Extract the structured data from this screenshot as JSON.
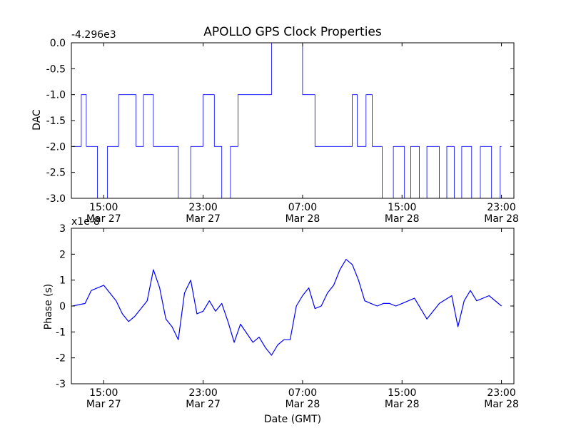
{
  "chart_data": [
    {
      "type": "line",
      "title": "APOLLO GPS Clock Properties",
      "ylabel": "DAC",
      "y_offset_label": "-4.296e3",
      "ylim": [
        -3.0,
        0.0
      ],
      "yticks": [
        "0.0",
        "-0.5",
        "-1.0",
        "-1.5",
        "-2.0",
        "-2.5",
        "-3.0"
      ],
      "xticks": [
        {
          "time": "15:00",
          "date": "Mar 27"
        },
        {
          "time": "23:00",
          "date": "Mar 27"
        },
        {
          "time": "07:00",
          "date": "Mar 28"
        },
        {
          "time": "15:00",
          "date": "Mar 28"
        },
        {
          "time": "23:00",
          "date": "Mar 28"
        }
      ],
      "color": "#0000ff",
      "series": [
        {
          "x_hours_since_tick0": [
            -2.5,
            -1.8,
            -1.8,
            -1.4,
            -1.4,
            -0.5,
            -0.5,
            0.3,
            0.3,
            0.5,
            0.5,
            1.2,
            1.2,
            2.6,
            2.6,
            3.2,
            3.2,
            4.0,
            4.0,
            6.0,
            6.0,
            7.0,
            7.0,
            8.0,
            8.0,
            8.9,
            8.9,
            9.5,
            9.5,
            10.2,
            10.2,
            10.8,
            10.8,
            11.6,
            11.6,
            12.5,
            12.5,
            13.5,
            13.5,
            16.0,
            16.0,
            16.3,
            16.3,
            16.6,
            16.6,
            17.0,
            17.0,
            20.0,
            20.0,
            20.4,
            20.4,
            21.1,
            21.1,
            21.6,
            21.6,
            22.4,
            22.4,
            23.3,
            23.3,
            24.2,
            24.2,
            24.7,
            24.7,
            25.4,
            25.4,
            26.0,
            26.0,
            27.0,
            27.0,
            27.6,
            27.6,
            28.2,
            28.2,
            28.8,
            28.8,
            29.6,
            29.6,
            30.3,
            30.3,
            31.2,
            31.2,
            31.9,
            31.9,
            32.0
          ],
          "y": [
            -2.0,
            -2.0,
            -1.0,
            -1.0,
            -2.0,
            -2.0,
            -3.0,
            -3.0,
            -2.0,
            -2.0,
            -2.0,
            -2.0,
            -1.0,
            -1.0,
            -2.0,
            -2.0,
            -1.0,
            -1.0,
            -2.0,
            -2.0,
            -3.0,
            -3.0,
            -2.0,
            -2.0,
            -1.0,
            -1.0,
            -2.0,
            -2.0,
            -3.0,
            -3.0,
            -2.0,
            -2.0,
            -1.0,
            -1.0,
            -1.0,
            -1.0,
            -1.0,
            -1.0,
            0.0,
            0.0,
            -1.0,
            -1.0,
            -1.0,
            -1.0,
            -1.0,
            -1.0,
            -2.0,
            -2.0,
            -1.0,
            -1.0,
            -2.0,
            -2.0,
            -1.0,
            -1.0,
            -2.0,
            -2.0,
            -3.0,
            -3.0,
            -2.0,
            -2.0,
            -3.0,
            -3.0,
            -2.0,
            -2.0,
            -3.0,
            -3.0,
            -2.0,
            -2.0,
            -3.0,
            -3.0,
            -2.0,
            -2.0,
            -3.0,
            -3.0,
            -2.0,
            -2.0,
            -3.0,
            -3.0,
            -2.0,
            -2.0,
            -3.0,
            -3.0,
            -2.0,
            -2.0
          ]
        }
      ]
    },
    {
      "type": "line",
      "title": "",
      "ylabel": "Phase (s)",
      "xlabel": "Date (GMT)",
      "y_offset_label": "x1e-8",
      "ylim": [
        -3,
        3
      ],
      "yticks": [
        "3",
        "2",
        "1",
        "0",
        "-1",
        "-2",
        "-3"
      ],
      "xticks": [
        {
          "time": "15:00",
          "date": "Mar 27"
        },
        {
          "time": "23:00",
          "date": "Mar 27"
        },
        {
          "time": "07:00",
          "date": "Mar 28"
        },
        {
          "time": "15:00",
          "date": "Mar 28"
        },
        {
          "time": "23:00",
          "date": "Mar 28"
        }
      ],
      "color": "#0000ff",
      "series": [
        {
          "x_hours_since_tick0": [
            -2.5,
            -1.5,
            -1.0,
            0.0,
            1.0,
            1.5,
            2.0,
            2.5,
            3.5,
            4.0,
            4.5,
            5.0,
            5.5,
            6.0,
            6.5,
            7.0,
            7.5,
            8.0,
            8.5,
            9.0,
            9.5,
            10.0,
            10.5,
            11.0,
            12.0,
            12.5,
            13.0,
            13.5,
            14.0,
            14.5,
            15.0,
            15.5,
            16.0,
            16.5,
            17.0,
            17.5,
            18.0,
            18.5,
            19.0,
            19.5,
            20.0,
            20.5,
            21.0,
            21.5,
            22.0,
            22.5,
            23.0,
            23.5,
            24.0,
            25.0,
            26.0,
            27.0,
            28.0,
            28.5,
            29.0,
            29.5,
            30.0,
            31.0,
            32.0
          ],
          "y": [
            0.0,
            0.1,
            0.6,
            0.8,
            0.2,
            -0.3,
            -0.6,
            -0.4,
            0.2,
            1.4,
            0.7,
            -0.5,
            -0.8,
            -1.3,
            0.5,
            1.0,
            -0.3,
            -0.2,
            0.2,
            -0.2,
            0.1,
            -0.6,
            -1.4,
            -0.7,
            -1.4,
            -1.2,
            -1.6,
            -1.9,
            -1.5,
            -1.3,
            -1.3,
            0.0,
            0.4,
            0.7,
            -0.1,
            0.0,
            0.5,
            0.8,
            1.4,
            1.8,
            1.6,
            1.0,
            0.2,
            0.1,
            0.0,
            0.1,
            0.1,
            0.0,
            0.1,
            0.3,
            -0.5,
            0.1,
            0.4,
            -0.8,
            0.2,
            0.6,
            0.2,
            0.4,
            0.0
          ]
        }
      ]
    }
  ],
  "colors": {
    "series": "#0000ff",
    "axes": "#000000",
    "background": "#ffffff"
  }
}
